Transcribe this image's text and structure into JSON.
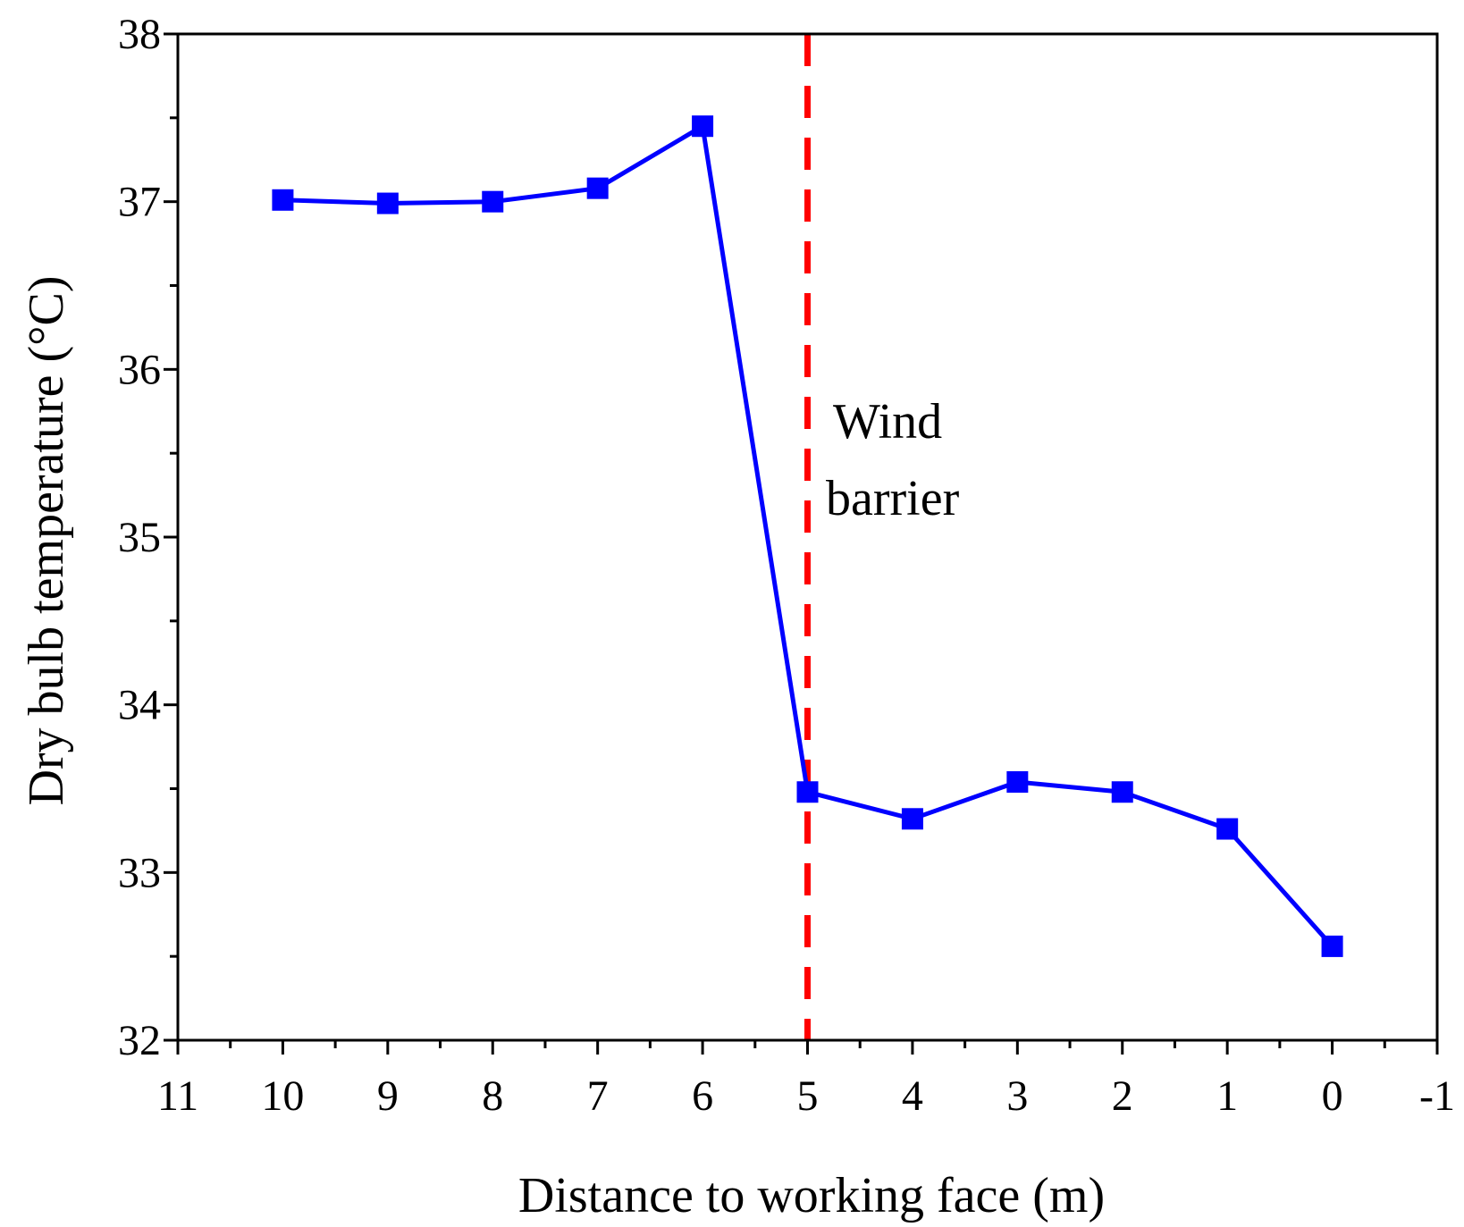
{
  "chart_data": {
    "type": "line",
    "title": "",
    "xlabel": "Distance to working face (m)",
    "ylabel": "Dry bulb temperature (°C)",
    "x_reversed": true,
    "xlim": [
      11,
      -1
    ],
    "ylim": [
      32,
      38
    ],
    "x_ticks": [
      11,
      10,
      9,
      8,
      7,
      6,
      5,
      4,
      3,
      2,
      1,
      0,
      -1
    ],
    "x_tick_labels": [
      "11",
      "10",
      "9",
      "8",
      "7",
      "6",
      "5",
      "4",
      "3",
      "2",
      "1",
      "0",
      "-1"
    ],
    "y_ticks": [
      32,
      33,
      34,
      35,
      36,
      37,
      38
    ],
    "y_tick_labels": [
      "32",
      "33",
      "34",
      "35",
      "36",
      "37",
      "38"
    ],
    "grid": false,
    "series": [
      {
        "name": "Dry bulb temperature",
        "color": "#0000ff",
        "marker": "square",
        "x": [
          10,
          9,
          8,
          7,
          6,
          5,
          4,
          3,
          2,
          1,
          0
        ],
        "y": [
          37.01,
          36.99,
          37.0,
          37.08,
          37.45,
          33.48,
          33.32,
          33.54,
          33.48,
          33.26,
          32.56
        ]
      }
    ],
    "reference_line": {
      "orientation": "vertical",
      "x": 5,
      "color": "#ff0000",
      "style": "dashed"
    },
    "annotation": {
      "lines": [
        "Wind",
        "barrier"
      ]
    }
  }
}
